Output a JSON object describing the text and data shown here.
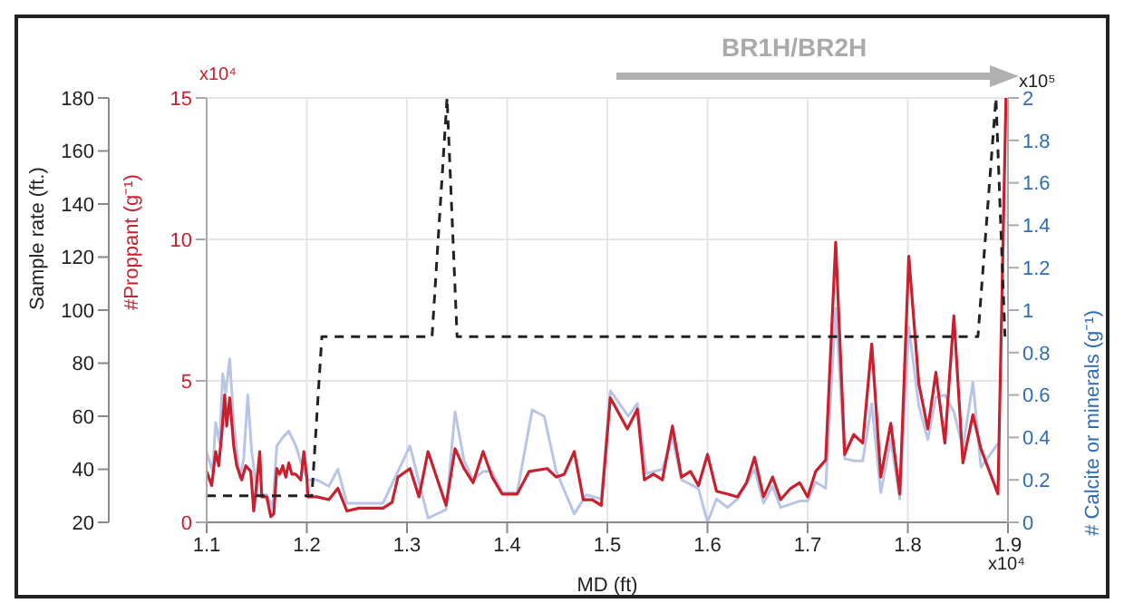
{
  "chart_data": {
    "type": "line",
    "xlabel": "MD (ft)",
    "ylabel": "#Proppant (g⁻¹)",
    "y2label": "# Calcite or minerals (g⁻¹)",
    "y3label": "Sample rate (ft.)",
    "annotations": [
      "x10⁴",
      "x10⁵",
      "x10⁴",
      "BR1H/BR2H"
    ],
    "xlim": [
      1.1,
      1.9
    ],
    "xticks": [
      1.1,
      1.2,
      1.3,
      1.4,
      1.5,
      1.6,
      1.7,
      1.8,
      1.9
    ],
    "ylim": [
      0,
      15
    ],
    "yticks": [
      0,
      5,
      10,
      15
    ],
    "y2lim": [
      0,
      2
    ],
    "y2ticks": [
      0,
      0.2,
      0.4,
      0.6,
      0.8,
      1,
      1.2,
      1.4,
      1.6,
      1.8,
      2
    ],
    "y3lim": [
      20,
      180
    ],
    "y3ticks": [
      20,
      40,
      60,
      80,
      100,
      120,
      140,
      160,
      180
    ],
    "grid": true,
    "series": [
      {
        "color": "#b9c5e6",
        "axis": "y2",
        "x": [
          1.1,
          1.106,
          1.109,
          1.113,
          1.116,
          1.119,
          1.123,
          1.127,
          1.133,
          1.137,
          1.141,
          1.145,
          1.151,
          1.16,
          1.166,
          1.17,
          1.176,
          1.182,
          1.189,
          1.197,
          1.201,
          1.21,
          1.222,
          1.231,
          1.24,
          1.255,
          1.276,
          1.288,
          1.303,
          1.321,
          1.339,
          1.348,
          1.357,
          1.366,
          1.376,
          1.385,
          1.395,
          1.41,
          1.425,
          1.437,
          1.449,
          1.467,
          1.479,
          1.494,
          1.503,
          1.521,
          1.53,
          1.539,
          1.555,
          1.565,
          1.574,
          1.591,
          1.6,
          1.609,
          1.62,
          1.63,
          1.647,
          1.656,
          1.665,
          1.673,
          1.692,
          1.7,
          1.708,
          1.718,
          1.728,
          1.737,
          1.746,
          1.755,
          1.764,
          1.773,
          1.783,
          1.792,
          1.801,
          1.811,
          1.82,
          1.828,
          1.837,
          1.846,
          1.855,
          1.865,
          1.873,
          1.89
        ],
        "values": [
          0.33,
          0.24,
          0.47,
          0.37,
          0.7,
          0.61,
          0.77,
          0.47,
          0.21,
          0.3,
          0.6,
          0.33,
          0.13,
          0.13,
          0.07,
          0.36,
          0.4,
          0.43,
          0.36,
          0.24,
          0.2,
          0.2,
          0.17,
          0.25,
          0.09,
          0.09,
          0.09,
          0.21,
          0.36,
          0.02,
          0.06,
          0.52,
          0.29,
          0.2,
          0.24,
          0.24,
          0.14,
          0.14,
          0.53,
          0.5,
          0.24,
          0.04,
          0.13,
          0.11,
          0.62,
          0.5,
          0.56,
          0.23,
          0.25,
          0.4,
          0.2,
          0.16,
          0,
          0.11,
          0.07,
          0.11,
          0.25,
          0.09,
          0.17,
          0.07,
          0.1,
          0.1,
          0.19,
          0.16,
          1.01,
          0.3,
          0.29,
          0.29,
          0.56,
          0.14,
          0.39,
          0.11,
          0.92,
          0.55,
          0.39,
          0.59,
          0.6,
          0.52,
          0.35,
          0.66,
          0.26,
          0.37
        ]
      },
      {
        "color": "#c8202e",
        "axis": "y",
        "x": [
          1.1,
          1.105,
          1.109,
          1.112,
          1.115,
          1.118,
          1.12,
          1.123,
          1.127,
          1.13,
          1.135,
          1.139,
          1.144,
          1.147,
          1.15,
          1.153,
          1.155,
          1.16,
          1.164,
          1.167,
          1.17,
          1.173,
          1.176,
          1.179,
          1.182,
          1.185,
          1.189,
          1.194,
          1.197,
          1.2,
          1.201,
          1.21,
          1.222,
          1.231,
          1.24,
          1.252,
          1.264,
          1.276,
          1.285,
          1.291,
          1.303,
          1.312,
          1.321,
          1.339,
          1.348,
          1.357,
          1.366,
          1.376,
          1.385,
          1.395,
          1.41,
          1.422,
          1.44,
          1.449,
          1.457,
          1.467,
          1.476,
          1.485,
          1.494,
          1.503,
          1.52,
          1.53,
          1.537,
          1.546,
          1.555,
          1.565,
          1.574,
          1.583,
          1.591,
          1.6,
          1.609,
          1.62,
          1.63,
          1.639,
          1.647,
          1.656,
          1.665,
          1.673,
          1.683,
          1.692,
          1.7,
          1.708,
          1.718,
          1.728,
          1.737,
          1.746,
          1.755,
          1.764,
          1.773,
          1.783,
          1.792,
          1.801,
          1.811,
          1.82,
          1.828,
          1.837,
          1.846,
          1.855,
          1.865,
          1.873,
          1.89,
          1.898
        ],
        "values": [
          1.8,
          1.3,
          2.5,
          2,
          3.1,
          4.5,
          3.4,
          4.4,
          2.7,
          2,
          1.5,
          2,
          1.8,
          0.4,
          1.4,
          2.5,
          0.9,
          0.9,
          0.2,
          0.3,
          1.9,
          1.7,
          2,
          1.6,
          2.1,
          1.7,
          1.7,
          1.5,
          2.5,
          1.6,
          0.9,
          0.9,
          0.8,
          1.2,
          0.4,
          0.5,
          0.5,
          0.5,
          0.7,
          1.6,
          1.9,
          0.9,
          2.5,
          0.6,
          2.6,
          1.9,
          1.4,
          2.5,
          1.6,
          1,
          1,
          1.8,
          1.9,
          1.6,
          1.7,
          2.5,
          0.8,
          0.8,
          0.6,
          4.4,
          3.3,
          4,
          1.5,
          1.7,
          1.5,
          3.4,
          1.6,
          1.8,
          1.3,
          2.4,
          1.1,
          1,
          0.9,
          1.4,
          2.3,
          0.9,
          1.6,
          0.8,
          1.2,
          1.4,
          0.9,
          1.8,
          2.2,
          9.9,
          2.4,
          3.1,
          2.8,
          6.3,
          1.6,
          3.5,
          1,
          9.4,
          4.9,
          3.3,
          5.3,
          2.8,
          7.3,
          2.1,
          3.8,
          2.6,
          1,
          15
        ]
      },
      {
        "color": "#222222",
        "axis": "y3",
        "line_style": "dashed",
        "x": [
          1.1,
          1.205,
          1.215,
          1.325,
          1.34,
          1.35,
          1.87,
          1.888,
          1.897
        ],
        "values": [
          30,
          30,
          90,
          90,
          180,
          90,
          90,
          180,
          90
        ]
      }
    ]
  }
}
